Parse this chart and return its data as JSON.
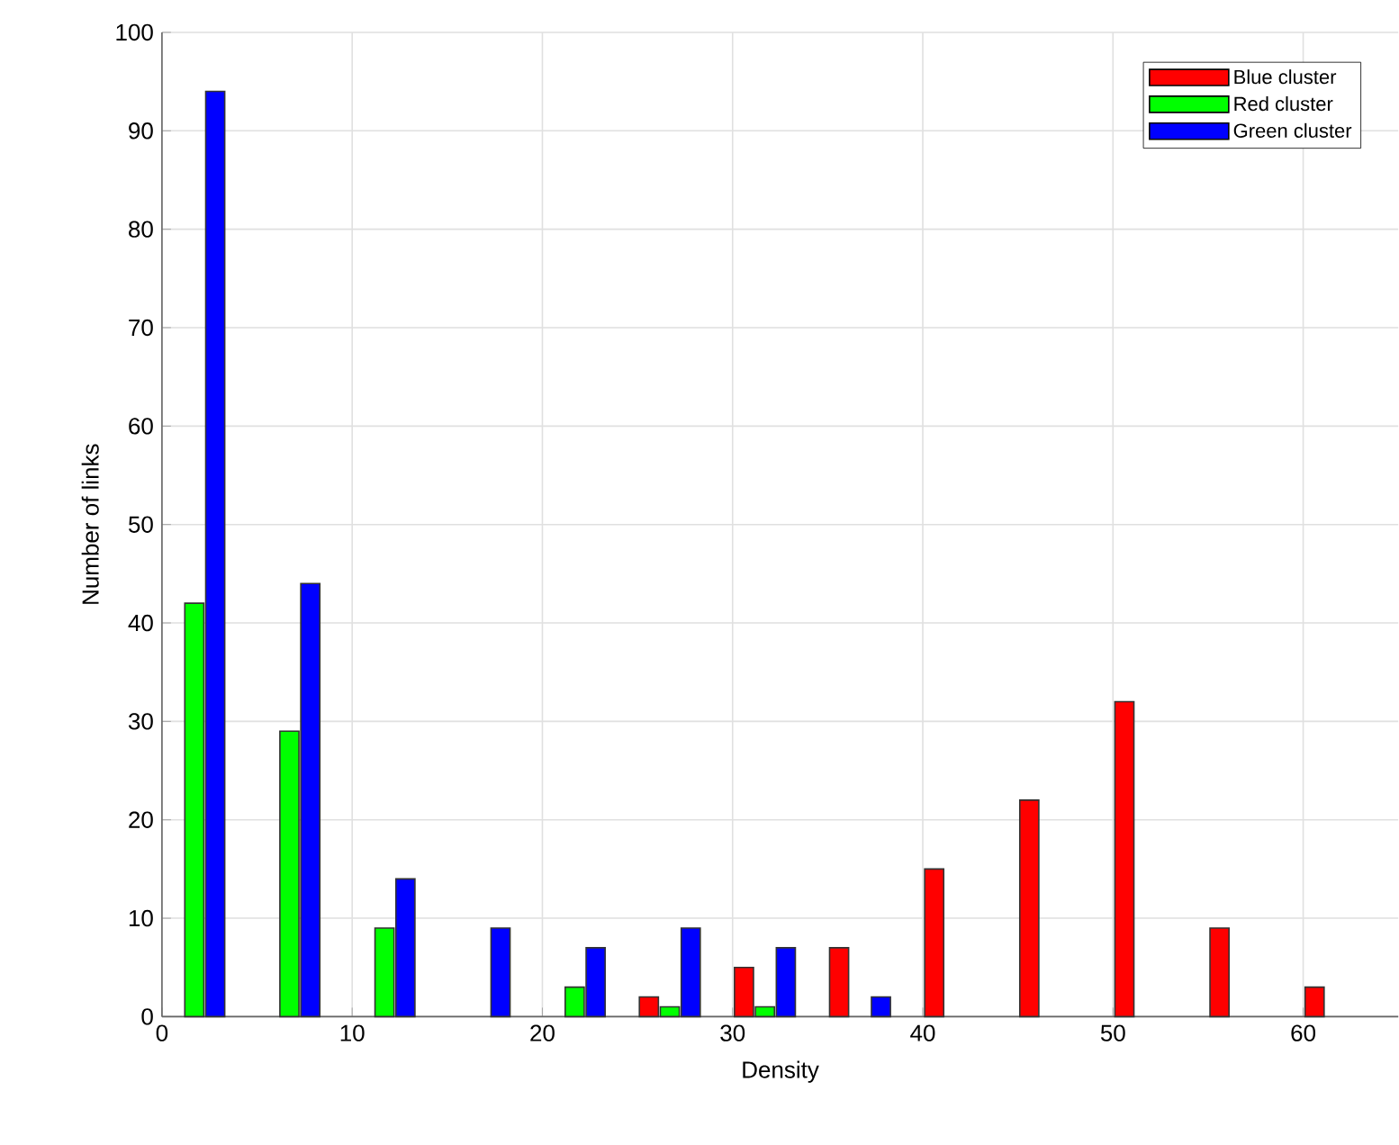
{
  "chart_data": {
    "type": "bar",
    "xlabel": "Density",
    "ylabel": "Number of links",
    "x": [
      1.7,
      6.7,
      11.7,
      16.7,
      21.7,
      26.7,
      31.7,
      36.7,
      41.7,
      46.7,
      51.7,
      56.7,
      61.7
    ],
    "series": [
      {
        "name": "Blue cluster",
        "color": "#ff0000",
        "values": [
          null,
          null,
          null,
          null,
          null,
          2,
          5,
          7,
          15,
          22,
          32,
          9,
          3
        ]
      },
      {
        "name": "Red cluster",
        "color": "#00ff00",
        "values": [
          42,
          29,
          9,
          null,
          3,
          1,
          1,
          null,
          null,
          null,
          null,
          null,
          null
        ]
      },
      {
        "name": "Green cluster",
        "color": "#0000ff",
        "values": [
          94,
          44,
          14,
          9,
          7,
          9,
          7,
          2,
          null,
          null,
          null,
          null,
          null
        ]
      }
    ],
    "xlim": [
      0,
      65
    ],
    "xticks": [
      0,
      10,
      20,
      30,
      40,
      50,
      60
    ],
    "ylim": [
      0,
      100
    ],
    "yticks": [
      0,
      10,
      20,
      30,
      40,
      50,
      60,
      70,
      80,
      90,
      100
    ],
    "grid": true,
    "legend": "top right"
  }
}
